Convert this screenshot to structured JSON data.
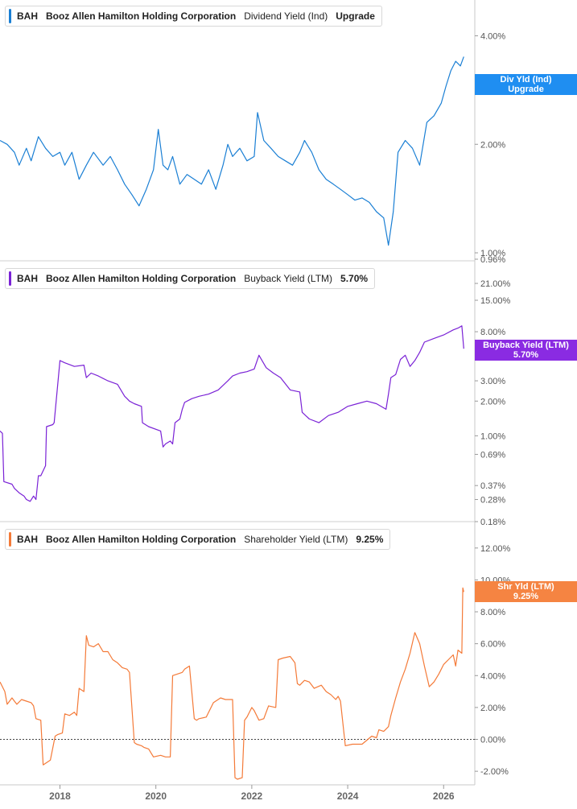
{
  "chart_data": [
    {
      "type": "line",
      "ticker": "BAH",
      "company": "Booz Allen Hamilton Holding Corporation",
      "metric": "Dividend Yield (Ind)",
      "current_value": "Upgrade",
      "flag_lines": [
        "Div Yld (Ind)",
        "Upgrade"
      ],
      "color": "#1a7fd4",
      "scale": "log",
      "yticks": [
        "4.00%",
        "2.00%",
        "1.00%",
        "0.96%"
      ],
      "ylim": [
        0.96,
        4.9
      ],
      "grid": false,
      "series": [
        {
          "x": [
            2016.75,
            2016.9,
            2017.05,
            2017.15,
            2017.3,
            2017.4,
            2017.55,
            2017.7,
            2017.85,
            2018.0,
            2018.1,
            2018.25,
            2018.4,
            2018.55,
            2018.7,
            2018.9,
            2019.05,
            2019.2,
            2019.35,
            2019.5,
            2019.65,
            2019.8,
            2019.95,
            2020.05,
            2020.15,
            2020.25,
            2020.35,
            2020.5,
            2020.65,
            2020.8,
            2020.95,
            2021.1,
            2021.25,
            2021.4,
            2021.5,
            2021.6,
            2021.75,
            2021.9,
            2022.05,
            2022.12,
            2022.25,
            2022.4,
            2022.55,
            2022.7,
            2022.85,
            2023.0,
            2023.1,
            2023.25,
            2023.4,
            2023.55,
            2023.7,
            2023.85,
            2024.0,
            2024.15,
            2024.3,
            2024.45,
            2024.6,
            2024.75,
            2024.85,
            2024.95,
            2025.05,
            2025.2,
            2025.35,
            2025.5,
            2025.65,
            2025.8,
            2025.95,
            2026.05,
            2026.15,
            2026.25,
            2026.35,
            2026.42
          ],
          "y": [
            2.05,
            2.0,
            1.9,
            1.75,
            1.95,
            1.8,
            2.1,
            1.95,
            1.85,
            1.9,
            1.75,
            1.9,
            1.6,
            1.75,
            1.9,
            1.75,
            1.85,
            1.7,
            1.55,
            1.45,
            1.35,
            1.5,
            1.7,
            2.2,
            1.75,
            1.7,
            1.85,
            1.55,
            1.65,
            1.6,
            1.55,
            1.7,
            1.5,
            1.75,
            2.0,
            1.85,
            1.95,
            1.8,
            1.85,
            2.45,
            2.05,
            1.95,
            1.85,
            1.8,
            1.75,
            1.9,
            2.05,
            1.9,
            1.7,
            1.6,
            1.55,
            1.5,
            1.45,
            1.4,
            1.42,
            1.38,
            1.3,
            1.25,
            1.05,
            1.3,
            1.9,
            2.05,
            1.95,
            1.75,
            2.3,
            2.4,
            2.6,
            2.9,
            3.2,
            3.4,
            3.3,
            3.5
          ]
        }
      ]
    },
    {
      "type": "line",
      "ticker": "BAH",
      "company": "Booz Allen Hamilton Holding Corporation",
      "metric": "Buyback Yield (LTM)",
      "current_value": "5.70%",
      "flag_lines": [
        "Buyback Yield (LTM)",
        "5.70%"
      ],
      "color": "#7a22d6",
      "scale": "log",
      "yticks": [
        "21.00%",
        "15.00%",
        "8.00%",
        "3.00%",
        "2.00%",
        "1.00%",
        "0.69%",
        "0.37%",
        "0.28%",
        "0.18%"
      ],
      "ylim": [
        0.18,
        29.0
      ],
      "grid": false,
      "series": [
        {
          "x": [
            2016.75,
            2016.8,
            2016.83,
            2017.0,
            2017.05,
            2017.15,
            2017.25,
            2017.3,
            2017.38,
            2017.45,
            2017.5,
            2017.55,
            2017.6,
            2017.7,
            2017.72,
            2017.85,
            2017.88,
            2018.0,
            2018.1,
            2018.3,
            2018.5,
            2018.55,
            2018.65,
            2018.8,
            2019.0,
            2019.2,
            2019.35,
            2019.4,
            2019.45,
            2019.55,
            2019.7,
            2019.72,
            2019.85,
            2020.1,
            2020.15,
            2020.2,
            2020.3,
            2020.35,
            2020.4,
            2020.5,
            2020.55,
            2020.6,
            2020.75,
            2020.9,
            2021.1,
            2021.3,
            2021.5,
            2021.6,
            2021.75,
            2021.9,
            2022.05,
            2022.15,
            2022.3,
            2022.45,
            2022.6,
            2022.8,
            2023.0,
            2023.05,
            2023.2,
            2023.4,
            2023.6,
            2023.8,
            2024.0,
            2024.2,
            2024.4,
            2024.6,
            2024.8,
            2024.85,
            2024.9,
            2025.0,
            2025.1,
            2025.2,
            2025.3,
            2025.4,
            2025.5,
            2025.6,
            2025.8,
            2026.0,
            2026.2,
            2026.3,
            2026.38,
            2026.42
          ],
          "y": [
            1.1,
            1.05,
            0.4,
            0.38,
            0.35,
            0.32,
            0.3,
            0.28,
            0.27,
            0.3,
            0.28,
            0.45,
            0.45,
            0.55,
            1.2,
            1.25,
            1.3,
            4.5,
            4.3,
            4.0,
            4.1,
            3.2,
            3.5,
            3.3,
            3.0,
            2.8,
            2.2,
            2.1,
            2.0,
            1.9,
            1.8,
            1.3,
            1.2,
            1.1,
            0.8,
            0.85,
            0.9,
            0.85,
            1.3,
            1.4,
            1.7,
            1.95,
            2.1,
            2.2,
            2.3,
            2.5,
            3.0,
            3.3,
            3.5,
            3.6,
            3.8,
            5.0,
            3.9,
            3.5,
            3.2,
            2.5,
            2.4,
            1.6,
            1.4,
            1.3,
            1.5,
            1.6,
            1.8,
            1.9,
            2.0,
            1.9,
            1.7,
            2.3,
            3.2,
            3.4,
            4.6,
            5.0,
            4.0,
            4.5,
            5.3,
            6.5,
            7.0,
            7.5,
            8.3,
            8.6,
            9.0,
            5.7
          ]
        }
      ]
    },
    {
      "type": "line",
      "ticker": "BAH",
      "company": "Booz Allen Hamilton Holding Corporation",
      "metric": "Shareholder Yield (LTM)",
      "current_value": "9.25%",
      "flag_lines": [
        "Shr Yld (LTM)",
        "9.25%"
      ],
      "color": "#f47a38",
      "scale": "linear",
      "yticks": [
        "12.00%",
        "10.00%",
        "8.00%",
        "6.00%",
        "4.00%",
        "2.00%",
        "0.00%",
        "-2.00%"
      ],
      "ylim": [
        -2.7,
        13.2
      ],
      "zero_line": true,
      "x_ticks": [
        2018,
        2020,
        2022,
        2024,
        2026
      ],
      "xlim": [
        2016.75,
        2026.65
      ],
      "grid": false,
      "series": [
        {
          "x": [
            2016.75,
            2016.85,
            2016.9,
            2017.0,
            2017.05,
            2017.1,
            2017.2,
            2017.3,
            2017.4,
            2017.45,
            2017.5,
            2017.6,
            2017.65,
            2017.75,
            2017.8,
            2017.9,
            2017.95,
            2018.05,
            2018.1,
            2018.2,
            2018.3,
            2018.35,
            2018.4,
            2018.5,
            2018.55,
            2018.6,
            2018.7,
            2018.8,
            2018.9,
            2019.0,
            2019.1,
            2019.2,
            2019.3,
            2019.4,
            2019.45,
            2019.55,
            2019.6,
            2019.7,
            2019.75,
            2019.85,
            2019.95,
            2020.1,
            2020.2,
            2020.3,
            2020.35,
            2020.55,
            2020.6,
            2020.7,
            2020.8,
            2020.85,
            2020.9,
            2021.05,
            2021.2,
            2021.35,
            2021.45,
            2021.6,
            2021.65,
            2021.7,
            2021.8,
            2021.85,
            2021.9,
            2022.0,
            2022.05,
            2022.15,
            2022.25,
            2022.35,
            2022.5,
            2022.55,
            2022.65,
            2022.8,
            2022.9,
            2022.95,
            2023.0,
            2023.1,
            2023.2,
            2023.3,
            2023.45,
            2023.55,
            2023.65,
            2023.75,
            2023.8,
            2023.85,
            2023.95,
            2024.1,
            2024.3,
            2024.5,
            2024.6,
            2024.65,
            2024.75,
            2024.85,
            2024.9,
            2025.0,
            2025.1,
            2025.2,
            2025.3,
            2025.4,
            2025.5,
            2025.6,
            2025.7,
            2025.8,
            2025.9,
            2026.0,
            2026.1,
            2026.2,
            2026.25,
            2026.3,
            2026.38,
            2026.4,
            2026.42
          ],
          "y": [
            3.6,
            3.0,
            2.2,
            2.6,
            2.4,
            2.2,
            2.5,
            2.4,
            2.3,
            2.1,
            1.3,
            1.2,
            -1.6,
            -1.4,
            -1.3,
            0.2,
            0.3,
            0.4,
            1.6,
            1.5,
            1.7,
            1.5,
            3.2,
            3.0,
            6.5,
            5.9,
            5.8,
            6.0,
            5.5,
            5.5,
            5.0,
            4.8,
            4.5,
            4.4,
            4.2,
            -0.2,
            -0.3,
            -0.4,
            -0.5,
            -0.6,
            -1.1,
            -1.0,
            -1.1,
            -1.1,
            4.0,
            4.2,
            4.4,
            4.6,
            1.3,
            1.2,
            1.3,
            1.4,
            2.3,
            2.6,
            2.5,
            2.5,
            -2.4,
            -2.5,
            -2.4,
            1.2,
            1.4,
            2.0,
            1.8,
            1.2,
            1.3,
            2.1,
            2.0,
            5.0,
            5.1,
            5.2,
            4.8,
            3.5,
            3.4,
            3.7,
            3.6,
            3.2,
            3.4,
            3.0,
            2.8,
            2.5,
            2.7,
            2.4,
            -0.4,
            -0.3,
            -0.3,
            0.2,
            0.1,
            0.6,
            0.5,
            0.8,
            1.5,
            2.6,
            3.6,
            4.4,
            5.4,
            6.7,
            6.0,
            4.6,
            3.3,
            3.6,
            4.1,
            4.7,
            5.0,
            5.3,
            4.6,
            5.6,
            5.4,
            9.5,
            9.25
          ]
        }
      ]
    }
  ]
}
